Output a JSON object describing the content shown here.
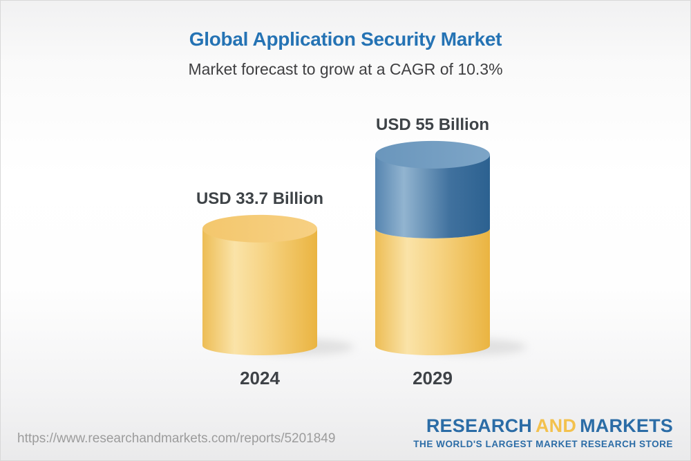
{
  "header": {
    "title": "Global Application Security Market",
    "subtitle": "Market forecast to grow at a CAGR of 10.3%"
  },
  "chart_data": {
    "type": "bar",
    "style": "3d-cylinder",
    "unit": "USD Billion",
    "cagr_percent": 10.3,
    "categories": [
      "2024",
      "2029"
    ],
    "values": [
      33.7,
      55
    ],
    "ylim": [
      0,
      60
    ],
    "grid": false,
    "legend": false,
    "bars": [
      {
        "category": "2024",
        "label": "USD 33.7 Billion",
        "total": 33.7,
        "segments": [
          {
            "value": 33.7,
            "color_key": "gold"
          }
        ]
      },
      {
        "category": "2029",
        "label": "USD 55 Billion",
        "total": 55,
        "segments": [
          {
            "value": 33.7,
            "color_key": "gold"
          },
          {
            "value": 21.3,
            "color_key": "blue"
          }
        ]
      }
    ],
    "segment_colors": {
      "gold": "#F2C567",
      "blue": "#4F81AD"
    }
  },
  "footer": {
    "url": "https://www.researchandmarkets.com/reports/5201849",
    "logo": {
      "word1": "RESEARCH",
      "word2": "AND",
      "word3": "MARKETS",
      "tagline": "THE WORLD'S LARGEST MARKET RESEARCH STORE"
    }
  },
  "colors": {
    "title_blue": "#2573B4",
    "text_dark": "#3E4347",
    "url_gray": "#9C9C9C",
    "logo_blue": "#2B6CA6",
    "logo_gold": "#F3C14D"
  }
}
